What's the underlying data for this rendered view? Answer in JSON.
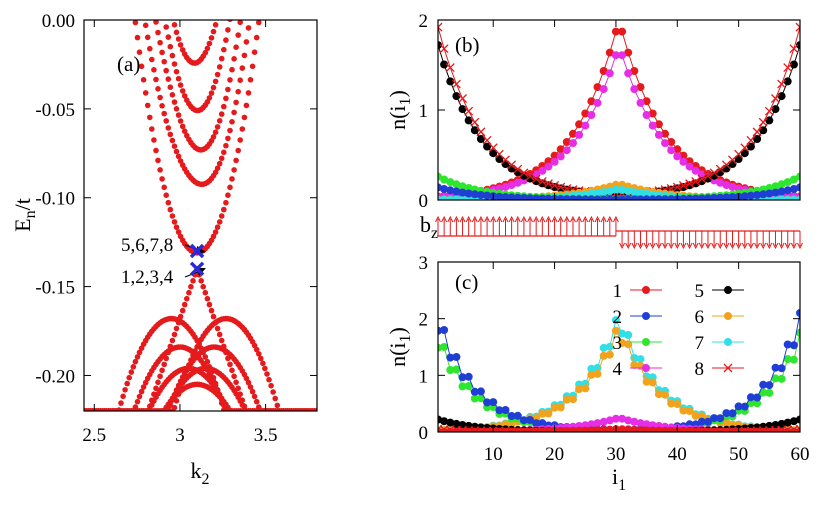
{
  "colors": {
    "1": "#e41a1c",
    "2": "#1f3fd4",
    "3": "#2ee62e",
    "4": "#e52ee5",
    "5": "#000000",
    "6": "#f2a31d",
    "7": "#31e0e6",
    "8": "#e41a1c",
    "band": "#e41a1c",
    "marker": "#2a2ad9",
    "bz_arrow": "#e41a1c"
  },
  "panel_a": {
    "label": "(a)",
    "xlabel_main": "k",
    "xlabel_sub": "2",
    "ylabel_main": "E",
    "ylabel_sub": "n",
    "ylabel_tail": "/t",
    "annotation_upper": "5,6,7,8",
    "annotation_lower": "1,2,3,4"
  },
  "panel_b": {
    "label": "(b)",
    "ylabel_main": "n(i",
    "ylabel_sub": "1",
    "ylabel_tail": ")",
    "bz_main": "b",
    "bz_sub": "z"
  },
  "panel_c": {
    "label": "(c)",
    "ylabel_main": "n(i",
    "ylabel_sub": "1",
    "ylabel_tail": ")",
    "xlabel_main": "i",
    "xlabel_sub": "1"
  },
  "chart_data": [
    {
      "panel": "(a)",
      "type": "scatter",
      "x_range": [
        2.44,
        3.8
      ],
      "y_range": [
        -0.22,
        0.0
      ],
      "xticks": [
        2.5,
        3,
        3.5
      ],
      "xtick_labels": [
        "2.5",
        "3",
        "3.5"
      ],
      "yticks": [
        0.0,
        -0.05,
        -0.1,
        -0.15,
        -0.2
      ],
      "ytick_labels": [
        "0.00",
        "-0.05",
        "-0.10",
        "-0.15",
        "-0.20"
      ],
      "crossing": {
        "k": 3.1,
        "E_upper": -0.13,
        "E_lower": -0.14
      },
      "upper_bands": [
        {
          "k0": 3.1,
          "Emin": -0.131,
          "curv": 1.0
        },
        {
          "k0": 3.1,
          "Emin": -0.095,
          "curv": 1.05
        },
        {
          "k0": 3.1,
          "Emin": -0.07,
          "curv": 1.1
        },
        {
          "k0": 3.1,
          "Emin": -0.045,
          "curv": 1.2
        },
        {
          "k0": 3.1,
          "Emin": -0.02,
          "curv": 1.3
        }
      ],
      "lower_bands": [
        {
          "k0": 2.95,
          "Emax": -0.168,
          "curv": 0.55
        },
        {
          "k0": 3.27,
          "Emax": -0.168,
          "curv": 0.55
        },
        {
          "k0": 3.0,
          "Emax": -0.184,
          "curv": 0.5
        },
        {
          "k0": 3.2,
          "Emax": -0.184,
          "curv": 0.5
        },
        {
          "k0": 3.05,
          "Emax": -0.196,
          "curv": 0.45
        },
        {
          "k0": 3.15,
          "Emax": -0.196,
          "curv": 0.45
        },
        {
          "k0": 3.1,
          "Emax": -0.205,
          "curv": 0.4
        }
      ]
    },
    {
      "panel": "(b)",
      "type": "line",
      "x_range": [
        1,
        60
      ],
      "y_range": [
        0,
        2
      ],
      "yticks": [
        0,
        1,
        2
      ],
      "ytick_labels": [
        "0",
        "1",
        "2"
      ],
      "series_profiles": [
        {
          "state": "1",
          "shape": "center",
          "peak": 2.0,
          "width": 7.5
        },
        {
          "state": "4",
          "shape": "center",
          "peak": 1.72,
          "width": 7.5
        },
        {
          "state": "5",
          "shape": "edge",
          "peak": 1.72,
          "width": 7.5
        },
        {
          "state": "8",
          "shape": "edge",
          "peak": 1.92,
          "width": 7.5
        },
        {
          "state": "6",
          "shape": "center",
          "peak": 0.18,
          "width": 8.0
        },
        {
          "state": "7",
          "shape": "center",
          "peak": 0.12,
          "width": 8.0
        },
        {
          "state": "3",
          "shape": "edge",
          "peak": 0.26,
          "width": 7.5
        },
        {
          "state": "2",
          "shape": "edge",
          "peak": 0.14,
          "width": 7.5
        }
      ],
      "bz_pattern": {
        "up_until_i1": 30,
        "down_after_i1": 30
      }
    },
    {
      "panel": "(c)",
      "type": "line",
      "x_range": [
        1,
        60
      ],
      "y_range": [
        0,
        3
      ],
      "xticks": [
        10,
        20,
        30,
        40,
        50,
        60
      ],
      "xtick_labels": [
        "10",
        "20",
        "30",
        "40",
        "50",
        "60"
      ],
      "yticks": [
        0,
        1,
        2,
        3
      ],
      "ytick_labels": [
        "0",
        "1",
        "2",
        "3"
      ],
      "legend_labels": [
        "1",
        "2",
        "3",
        "4",
        "5",
        "6",
        "7",
        "8"
      ],
      "series_profiles": [
        {
          "state": "7",
          "shape": "center",
          "peak": 2.12,
          "width": 7.0
        },
        {
          "state": "6",
          "shape": "center",
          "peak": 1.92,
          "width": 7.0
        },
        {
          "state": "3",
          "shape": "edge",
          "peak": 1.75,
          "width": 6.5
        },
        {
          "state": "2",
          "shape": "edge",
          "peak": 2.1,
          "width": 6.5
        },
        {
          "state": "4",
          "shape": "center",
          "peak": 0.25,
          "width": 7.5
        },
        {
          "state": "5",
          "shape": "edge",
          "peak": 0.22,
          "width": 7.0
        },
        {
          "state": "1",
          "shape": "center",
          "peak": 0.05,
          "width": 8.0
        },
        {
          "state": "8",
          "shape": "edge",
          "peak": 0.05,
          "width": 8.0
        }
      ]
    }
  ]
}
